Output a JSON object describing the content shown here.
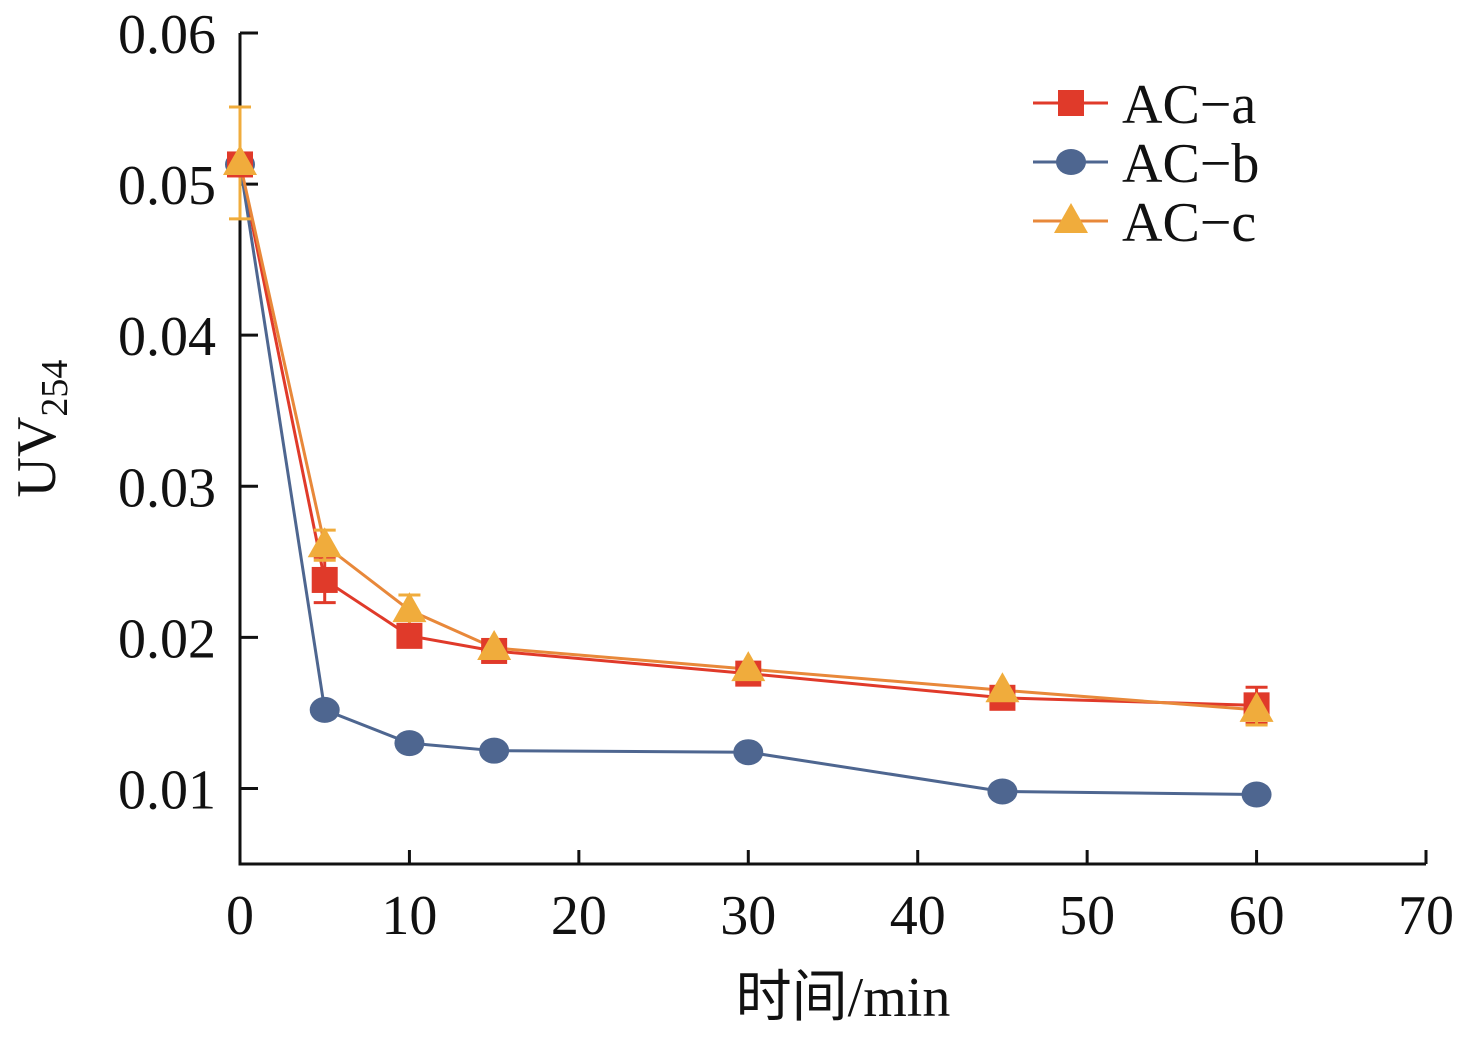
{
  "chart_data": {
    "type": "line",
    "title": "",
    "xlabel": "时间/min",
    "ylabel": "UV",
    "ylabel_subscript": "254",
    "xlim": [
      0,
      70
    ],
    "ylim": [
      0.005,
      0.06
    ],
    "x_ticks": [
      0,
      10,
      20,
      30,
      40,
      50,
      60,
      70
    ],
    "x_tick_labels": [
      "0",
      "10",
      "20",
      "30",
      "40",
      "50",
      "60",
      "70"
    ],
    "y_ticks": [
      0.01,
      0.02,
      0.03,
      0.04,
      0.05,
      0.06
    ],
    "y_tick_labels": [
      "0.01",
      "0.02",
      "0.03",
      "0.04",
      "0.05",
      "0.06"
    ],
    "grid": false,
    "legend_position": "top-right",
    "x": [
      0,
      5,
      10,
      15,
      30,
      45,
      60
    ],
    "series": [
      {
        "name": "AC−a",
        "marker": "square",
        "color": "#e03a2a",
        "line_color": "#e03a2a",
        "values": [
          0.0513,
          0.0238,
          0.0201,
          0.0191,
          0.0176,
          0.016,
          0.0155
        ],
        "errors": [
          0.0003,
          0.0015,
          0.0004,
          0.0003,
          0.0003,
          0.0003,
          0.0012
        ]
      },
      {
        "name": "AC−b",
        "marker": "circle",
        "color": "#4e6690",
        "line_color": "#4e6690",
        "values": [
          0.0513,
          0.0152,
          0.013,
          0.0125,
          0.0124,
          0.0098,
          0.0096
        ],
        "errors": [
          0,
          0,
          0,
          0,
          0,
          0,
          0
        ]
      },
      {
        "name": "AC−c",
        "marker": "triangle",
        "color": "#f0ac3c",
        "line_color": "#e8883a",
        "values": [
          0.0514,
          0.0261,
          0.0218,
          0.0193,
          0.0179,
          0.0165,
          0.0152
        ],
        "errors": [
          0.0037,
          0.001,
          0.001,
          0.0003,
          0.0003,
          0.0003,
          0.001
        ]
      }
    ]
  }
}
